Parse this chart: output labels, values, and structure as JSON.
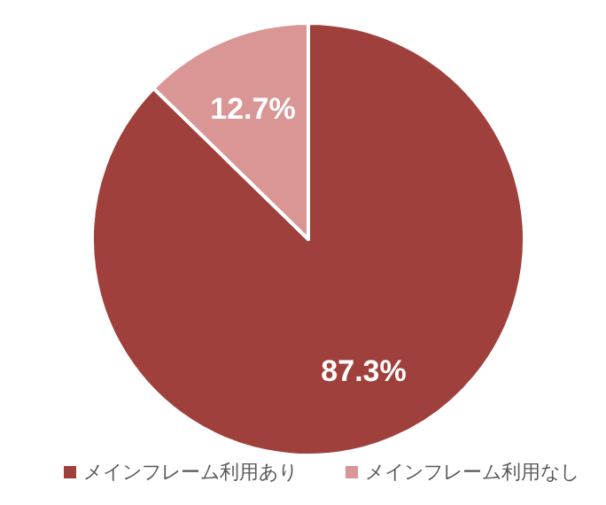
{
  "chart_data": {
    "type": "pie",
    "categories": [
      "メインフレーム利用あり",
      "メインフレーム利用なし"
    ],
    "values": [
      87.3,
      12.7
    ],
    "colors": [
      "#a0403c",
      "#d99694"
    ],
    "value_labels": [
      "87.3%",
      "12.7%"
    ],
    "legend": "bottom"
  }
}
